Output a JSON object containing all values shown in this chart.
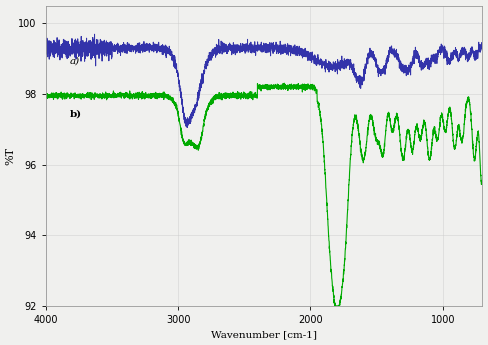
{
  "title": "",
  "xlabel": "Wavenumber [cm-1]",
  "ylabel": "%T",
  "xlim": [
    4000,
    700
  ],
  "ylim": [
    92,
    100.5
  ],
  "yticks": [
    92,
    94,
    96,
    98,
    100
  ],
  "xticks": [
    4000,
    3000,
    2000,
    1000
  ],
  "label_a": "a)",
  "label_b": "b)",
  "color_a": "#3333aa",
  "color_b": "#00aa00",
  "background": "#f0f0ee",
  "grid_color": "#cccccc",
  "linewidth_a": 0.7,
  "linewidth_b": 0.8
}
